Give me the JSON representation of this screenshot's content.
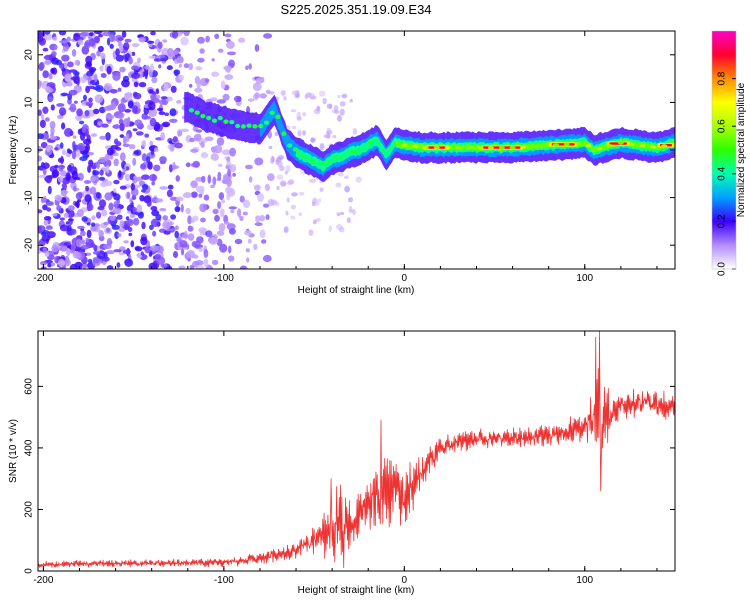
{
  "title": "S225.2025.351.19.09.E34",
  "chart_data": [
    {
      "type": "heatmap",
      "xlabel": "Height of straight line (km)",
      "ylabel": "Frequency (Hz)",
      "xlim": [
        -203,
        150
      ],
      "ylim": [
        -25,
        25
      ],
      "x_ticks": [
        -200,
        -100,
        0,
        100
      ],
      "x_tick_labels": [
        "-200",
        "-100",
        "0",
        "100"
      ],
      "y_ticks": [
        -20,
        -10,
        0,
        10,
        20
      ],
      "y_tick_labels": [
        "-20",
        "-10",
        "0",
        "10",
        "20"
      ],
      "ridge": {
        "x": [
          -120,
          -110,
          -100,
          -90,
          -80,
          -72,
          -65,
          -60,
          -55,
          -50,
          -45,
          -40,
          -35,
          -30,
          -25,
          -20,
          -15,
          -12,
          -10,
          -8,
          -5,
          0,
          5,
          10,
          20,
          40,
          60,
          80,
          100,
          105,
          110,
          120,
          130,
          140,
          150
        ],
        "y": [
          9,
          7,
          6,
          5,
          4.5,
          8.5,
          1.5,
          -0.5,
          -1.5,
          -2.5,
          -3.5,
          -2,
          -1.5,
          -0.5,
          0,
          1,
          2,
          0,
          -1,
          0,
          1.5,
          1,
          0.8,
          0.5,
          0.5,
          0.5,
          0.5,
          1,
          1.5,
          0,
          0.5,
          1.5,
          1,
          0.5,
          1.5
        ]
      },
      "colorbar": {
        "label": "Normalized spectral amplitude",
        "ticks": [
          0.0,
          0.2,
          0.4,
          0.6,
          0.8
        ],
        "tick_labels": [
          "0.0",
          "0.2",
          "0.4",
          "0.6",
          "0.8"
        ],
        "range": [
          0,
          1
        ]
      }
    },
    {
      "type": "line",
      "color": "#ee3333",
      "xlabel": "Height of straight line (km)",
      "ylabel": "SNR (10 * v/v)",
      "xlim": [
        -203,
        150
      ],
      "ylim": [
        0,
        780
      ],
      "x_ticks": [
        -200,
        -100,
        0,
        100
      ],
      "x_tick_labels": [
        "-200",
        "-100",
        "0",
        "100"
      ],
      "y_ticks": [
        0,
        200,
        400,
        600
      ],
      "y_tick_labels": [
        "0",
        "200",
        "400",
        "600"
      ],
      "envelope": {
        "x": [
          -203,
          -100,
          -80,
          -60,
          -50,
          -40,
          -35,
          -30,
          -20,
          -15,
          -10,
          -5,
          0,
          5,
          10,
          20,
          30,
          40,
          60,
          80,
          90,
          100,
          105,
          108,
          110,
          115,
          120,
          130,
          140,
          150
        ],
        "center": [
          22,
          28,
          40,
          70,
          100,
          130,
          160,
          140,
          220,
          230,
          250,
          280,
          250,
          280,
          320,
          400,
          420,
          430,
          430,
          440,
          450,
          470,
          500,
          520,
          480,
          520,
          540,
          550,
          540,
          520
        ],
        "spread": [
          10,
          12,
          20,
          30,
          45,
          90,
          140,
          100,
          90,
          120,
          130,
          120,
          110,
          70,
          60,
          40,
          35,
          30,
          30,
          35,
          40,
          50,
          70,
          220,
          150,
          50,
          45,
          45,
          45,
          50
        ]
      },
      "spikes": [
        {
          "x": -40.5,
          "y": 300
        },
        {
          "x": -13,
          "y": 490
        },
        {
          "x": 106,
          "y": 760
        },
        {
          "x": 108,
          "y": 780
        },
        {
          "x": 109,
          "y": 260
        }
      ]
    }
  ]
}
